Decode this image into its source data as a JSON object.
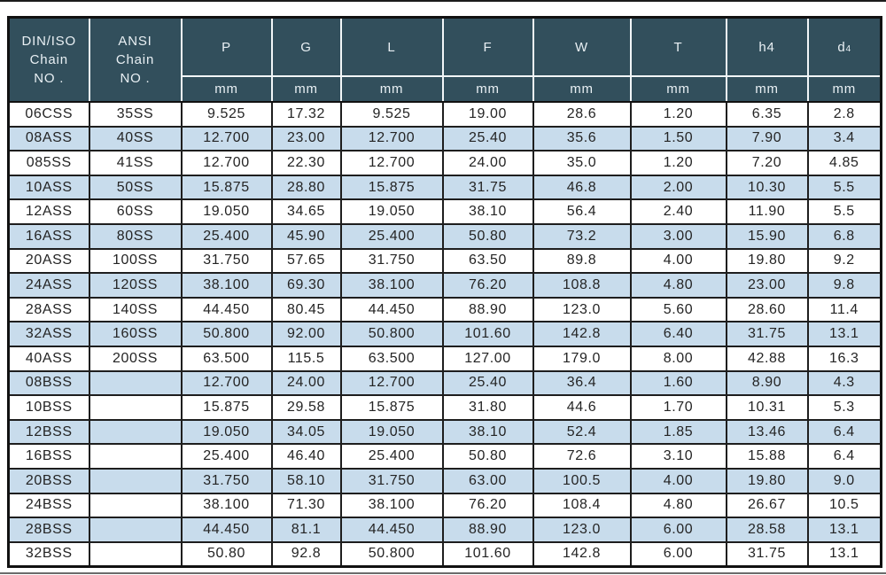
{
  "table": {
    "row_headers": [
      {
        "label": "DIN/ISO\nChain\nNO ."
      },
      {
        "label": "ANSI\nChain\nNO ."
      }
    ],
    "columns": [
      {
        "label": "P",
        "unit": "mm"
      },
      {
        "label": "G",
        "unit": "mm"
      },
      {
        "label": "L",
        "unit": "mm"
      },
      {
        "label": "F",
        "unit": "mm"
      },
      {
        "label": "W",
        "unit": "mm"
      },
      {
        "label": "T",
        "unit": "mm"
      },
      {
        "label": "h4",
        "unit": "mm"
      },
      {
        "label": "d",
        "sub": "4",
        "unit": "mm"
      }
    ],
    "rows": [
      {
        "din": "06CSS",
        "ansi": "35SS",
        "values": [
          "9.525",
          "17.32",
          "9.525",
          "19.00",
          "28.6",
          "1.20",
          "6.35",
          "2.8"
        ]
      },
      {
        "din": "08ASS",
        "ansi": "40SS",
        "values": [
          "12.700",
          "23.00",
          "12.700",
          "25.40",
          "35.6",
          "1.50",
          "7.90",
          "3.4"
        ]
      },
      {
        "din": "085SS",
        "ansi": "41SS",
        "values": [
          "12.700",
          "22.30",
          "12.700",
          "24.00",
          "35.0",
          "1.20",
          "7.20",
          "4.85"
        ]
      },
      {
        "din": "10ASS",
        "ansi": "50SS",
        "values": [
          "15.875",
          "28.80",
          "15.875",
          "31.75",
          "46.8",
          "2.00",
          "10.30",
          "5.5"
        ]
      },
      {
        "din": "12ASS",
        "ansi": "60SS",
        "values": [
          "19.050",
          "34.65",
          "19.050",
          "38.10",
          "56.4",
          "2.40",
          "11.90",
          "5.5"
        ]
      },
      {
        "din": "16ASS",
        "ansi": "80SS",
        "values": [
          "25.400",
          "45.90",
          "25.400",
          "50.80",
          "73.2",
          "3.00",
          "15.90",
          "6.8"
        ]
      },
      {
        "din": "20ASS",
        "ansi": "100SS",
        "values": [
          "31.750",
          "57.65",
          "31.750",
          "63.50",
          "89.8",
          "4.00",
          "19.80",
          "9.2"
        ]
      },
      {
        "din": "24ASS",
        "ansi": "120SS",
        "values": [
          "38.100",
          "69.30",
          "38.100",
          "76.20",
          "108.8",
          "4.80",
          "23.00",
          "9.8"
        ]
      },
      {
        "din": "28ASS",
        "ansi": "140SS",
        "values": [
          "44.450",
          "80.45",
          "44.450",
          "88.90",
          "123.0",
          "5.60",
          "28.60",
          "11.4"
        ]
      },
      {
        "din": "32ASS",
        "ansi": "160SS",
        "values": [
          "50.800",
          "92.00",
          "50.800",
          "101.60",
          "142.8",
          "6.40",
          "31.75",
          "13.1"
        ]
      },
      {
        "din": "40ASS",
        "ansi": "200SS",
        "values": [
          "63.500",
          "115.5",
          "63.500",
          "127.00",
          "179.0",
          "8.00",
          "42.88",
          "16.3"
        ]
      },
      {
        "din": "08BSS",
        "ansi": "",
        "values": [
          "12.700",
          "24.00",
          "12.700",
          "25.40",
          "36.4",
          "1.60",
          "8.90",
          "4.3"
        ]
      },
      {
        "din": "10BSS",
        "ansi": "",
        "values": [
          "15.875",
          "29.58",
          "15.875",
          "31.80",
          "44.6",
          "1.70",
          "10.31",
          "5.3"
        ]
      },
      {
        "din": "12BSS",
        "ansi": "",
        "values": [
          "19.050",
          "34.05",
          "19.050",
          "38.10",
          "52.4",
          "1.85",
          "13.46",
          "6.4"
        ]
      },
      {
        "din": "16BSS",
        "ansi": "",
        "values": [
          "25.400",
          "46.40",
          "25.400",
          "50.80",
          "72.6",
          "3.10",
          "15.88",
          "6.4"
        ]
      },
      {
        "din": "20BSS",
        "ansi": "",
        "values": [
          "31.750",
          "58.10",
          "31.750",
          "63.00",
          "100.5",
          "4.00",
          "19.80",
          "9.0"
        ]
      },
      {
        "din": "24BSS",
        "ansi": "",
        "values": [
          "38.100",
          "71.30",
          "38.100",
          "76.20",
          "108.4",
          "4.80",
          "26.67",
          "10.5"
        ]
      },
      {
        "din": "28BSS",
        "ansi": "",
        "values": [
          "44.450",
          "81.1",
          "44.450",
          "88.90",
          "123.0",
          "6.00",
          "28.58",
          "13.1"
        ]
      },
      {
        "din": "32BSS",
        "ansi": "",
        "values": [
          "50.80",
          "92.8",
          "50.800",
          "101.60",
          "142.8",
          "6.00",
          "31.75",
          "13.1"
        ]
      }
    ],
    "colors": {
      "header_bg": "#324f5c",
      "header_text": "#e9f0f4",
      "stripe_blue": "#c8dcec",
      "stripe_white": "#ffffff",
      "grid_line": "#1e1e1e"
    }
  }
}
